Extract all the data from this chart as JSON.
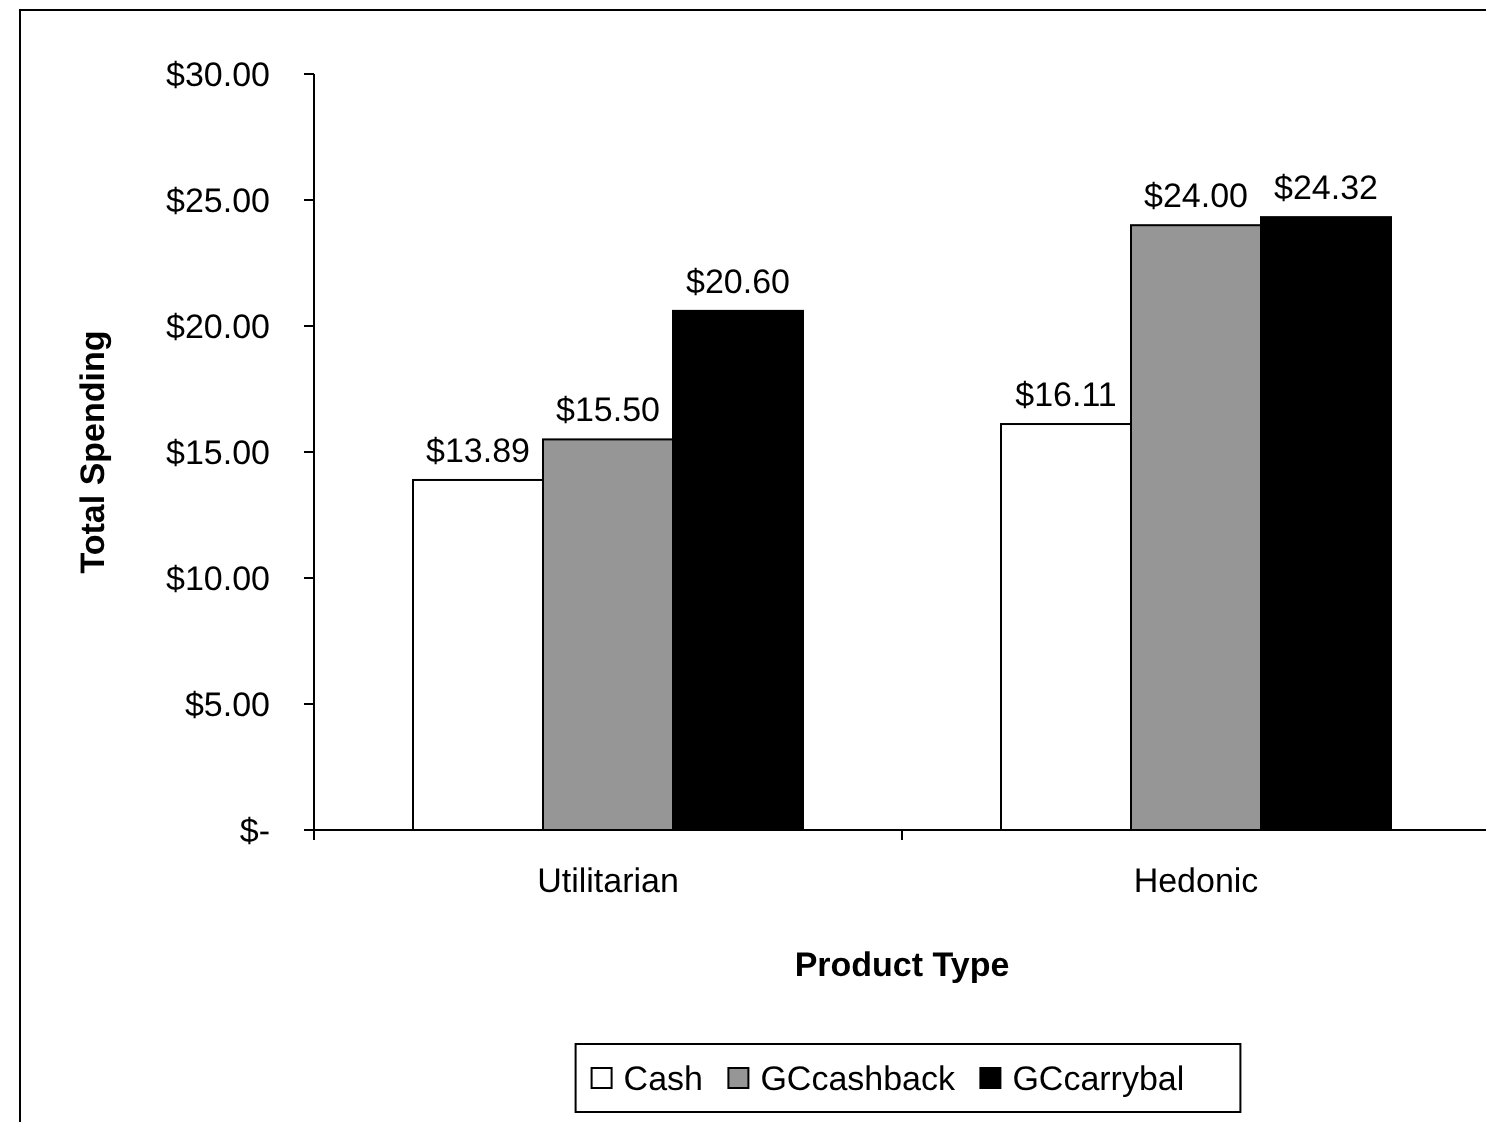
{
  "chart_data": {
    "type": "bar",
    "xlabel": "Product Type",
    "ylabel": "Total Spending",
    "categories": [
      "Utilitarian",
      "Hedonic"
    ],
    "series": [
      {
        "name": "Cash",
        "color": "#ffffff",
        "values": [
          13.89,
          16.11
        ],
        "value_labels": [
          "$13.89",
          "$16.11"
        ]
      },
      {
        "name": "GCcashback",
        "color": "#969696",
        "values": [
          15.5,
          24.0
        ],
        "value_labels": [
          "$15.50",
          "$24.00"
        ]
      },
      {
        "name": "GCcarrybal",
        "color": "#000000",
        "values": [
          20.6,
          24.32
        ],
        "value_labels": [
          "$20.60",
          "$24.32"
        ]
      }
    ],
    "ylim": [
      0,
      30
    ],
    "yticks": [
      {
        "value": 0,
        "label": "$-"
      },
      {
        "value": 5,
        "label": "$5.00"
      },
      {
        "value": 10,
        "label": "$10.00"
      },
      {
        "value": 15,
        "label": "$15.00"
      },
      {
        "value": 20,
        "label": "$20.00"
      },
      {
        "value": 25,
        "label": "$25.00"
      },
      {
        "value": 30,
        "label": "$30.00"
      }
    ],
    "grid": false,
    "legend": "bottom"
  }
}
